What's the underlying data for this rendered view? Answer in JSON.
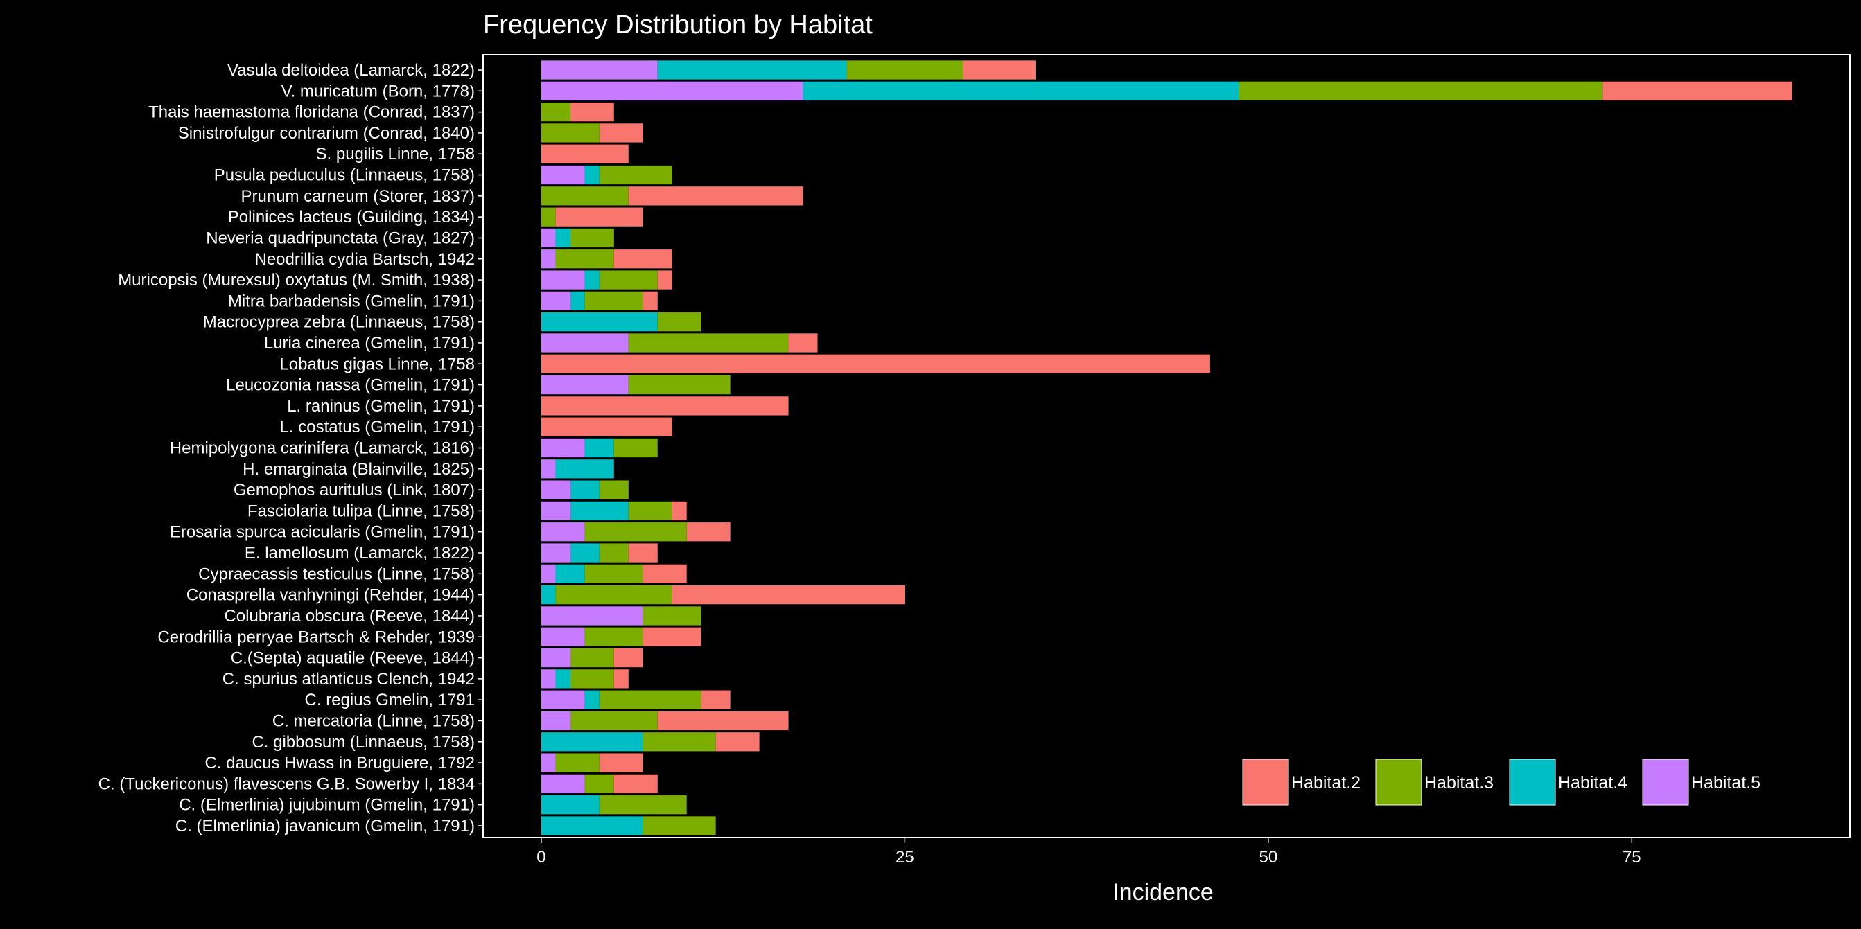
{
  "chart_data": {
    "type": "bar",
    "orientation": "horizontal",
    "stacked": true,
    "title": "Frequency Distribution by Habitat",
    "xlabel": "Incidence",
    "ylabel": "",
    "xlim": [
      -4,
      90
    ],
    "x_ticks": [
      0,
      25,
      50,
      75
    ],
    "grid": false,
    "legend_position": "bottom-right, inside",
    "colors": {
      "background": "#000000",
      "text": "#ffffff",
      "Habitat.2": "#F8766D",
      "Habitat.3": "#7CAE00",
      "Habitat.4": "#00BFC4",
      "Habitat.5": "#C77CFF"
    },
    "legend": [
      "Habitat.2",
      "Habitat.3",
      "Habitat.4",
      "Habitat.5"
    ],
    "stack_order": [
      "Habitat.5",
      "Habitat.4",
      "Habitat.3",
      "Habitat.2"
    ],
    "categories": [
      "Vasula deltoidea (Lamarck, 1822)",
      "V. muricatum (Born, 1778)",
      "Thais haemastoma floridana  (Conrad, 1837)",
      "Sinistrofulgur contrarium (Conrad, 1840)",
      "S. pugilis Linne, 1758",
      "Pusula peduculus (Linnaeus, 1758)",
      "Prunum carneum (Storer, 1837)",
      "Polinices lacteus (Guilding, 1834)",
      "Neveria quadripunctata (Gray, 1827)",
      "Neodrillia cydia Bartsch, 1942",
      "Muricopsis (Murexsul) oxytatus (M. Smith, 1938)",
      "Mitra barbadensis  (Gmelin, 1791)",
      "Macrocyprea zebra (Linnaeus, 1758)",
      "Luria cinerea (Gmelin, 1791)",
      "Lobatus gigas Linne, 1758",
      "Leucozonia nassa (Gmelin, 1791)",
      "L. raninus (Gmelin, 1791)",
      "L. costatus (Gmelin, 1791)",
      "Hemipolygona carinifera (Lamarck, 1816)",
      "H. emarginata (Blainville, 1825)",
      "Gemophos auritulus (Link, 1807)",
      "Fasciolaria tulipa (Linne, 1758)",
      "Erosaria spurca acicularis (Gmelin, 1791)",
      "E. lamellosum (Lamarck, 1822)",
      "Cypraecassis testiculus (Linne, 1758)",
      "Conasprella vanhyningi (Rehder, 1944)",
      "Colubraria obscura (Reeve, 1844)",
      "Cerodrillia perryae Bartsch & Rehder, 1939",
      "C.(Septa) aquatile (Reeve, 1844)",
      "C. spurius atlanticus Clench, 1942",
      "C. regius Gmelin, 1791",
      "C. mercatoria (Linne, 1758)",
      "C. gibbosum (Linnaeus, 1758)",
      "C. daucus Hwass in Bruguiere, 1792",
      "C. (Tuckericonus) flavescens  G.B. Sowerby I, 1834",
      "C. (Elmerlinia) jujubinum (Gmelin, 1791)",
      "C. (Elmerlinia) javanicum (Gmelin, 1791)"
    ],
    "series": [
      {
        "name": "Habitat.5",
        "values": [
          8,
          18,
          0,
          0,
          0,
          3,
          0,
          0,
          1,
          1,
          3,
          2,
          0,
          6,
          0,
          6,
          0,
          0,
          3,
          1,
          2,
          2,
          3,
          2,
          1,
          0,
          7,
          3,
          2,
          1,
          3,
          2,
          0,
          1,
          3,
          0,
          0
        ]
      },
      {
        "name": "Habitat.4",
        "values": [
          13,
          30,
          0,
          0,
          0,
          1,
          0,
          0,
          1,
          0,
          1,
          1,
          8,
          0,
          0,
          0,
          0,
          0,
          2,
          4,
          2,
          4,
          0,
          2,
          2,
          1,
          0,
          0,
          0,
          1,
          1,
          0,
          7,
          0,
          0,
          4,
          7
        ]
      },
      {
        "name": "Habitat.3",
        "values": [
          8,
          25,
          2,
          4,
          0,
          5,
          6,
          1,
          3,
          4,
          4,
          4,
          3,
          11,
          0,
          7,
          0,
          0,
          3,
          0,
          2,
          3,
          7,
          2,
          4,
          8,
          4,
          4,
          3,
          3,
          7,
          6,
          5,
          3,
          2,
          6,
          5
        ]
      },
      {
        "name": "Habitat.2",
        "values": [
          5,
          13,
          3,
          3,
          6,
          0,
          12,
          6,
          0,
          4,
          1,
          1,
          0,
          2,
          46,
          0,
          17,
          9,
          0,
          0,
          0,
          1,
          3,
          2,
          3,
          16,
          0,
          4,
          2,
          1,
          2,
          9,
          3,
          3,
          3,
          0,
          0
        ]
      }
    ]
  }
}
